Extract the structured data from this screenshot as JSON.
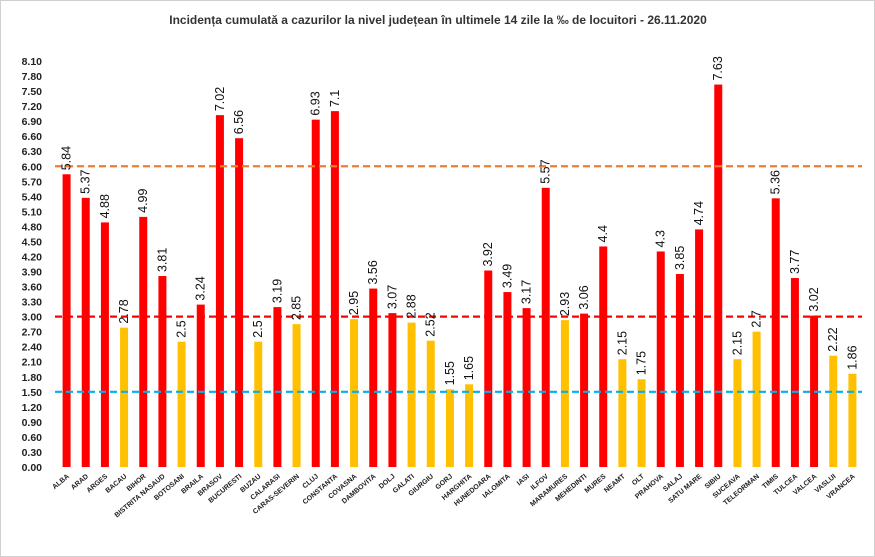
{
  "chart_data": {
    "type": "bar",
    "title": "Incidența cumulată a cazurilor la nivel județean în ultimele 14 zile la ‰ de locuitori - 26.11.2020",
    "xlabel": "",
    "ylabel": "",
    "ylim": [
      0,
      8.1
    ],
    "yticks": [
      "0.00",
      "0.30",
      "0.60",
      "0.90",
      "1.20",
      "1.50",
      "1.80",
      "2.10",
      "2.40",
      "2.70",
      "3.00",
      "3.30",
      "3.60",
      "3.90",
      "4.20",
      "4.50",
      "4.80",
      "5.10",
      "5.40",
      "5.70",
      "6.00",
      "6.30",
      "6.60",
      "6.90",
      "7.20",
      "7.50",
      "7.80",
      "8.10"
    ],
    "grid": false,
    "legend": "none",
    "categories": [
      "ALBA",
      "ARAD",
      "ARGES",
      "BACAU",
      "BIHOR",
      "BISTRITA NASAUD",
      "BOTOSANI",
      "BRAILA",
      "BRASOV",
      "BUCURESTI",
      "BUZAU",
      "CALARASI",
      "CARAS-SEVERIN",
      "CLUJ",
      "CONSTANTA",
      "COVASNA",
      "DAMBOVITA",
      "DOLJ",
      "GALATI",
      "GIURGIU",
      "GORJ",
      "HARGHITA",
      "HUNEDOARA",
      "IALOMITA",
      "IASI",
      "ILFOV",
      "MARAMURES",
      "MEHEDINTI",
      "MURES",
      "NEAMT",
      "OLT",
      "PRAHOVA",
      "SALAJ",
      "SATU MARE",
      "SIBIU",
      "SUCEAVA",
      "TELEORMAN",
      "TIMIS",
      "TULCEA",
      "VALCEA",
      "VASLUI",
      "VRANCEA"
    ],
    "values": [
      5.84,
      5.37,
      4.88,
      2.78,
      4.99,
      3.81,
      2.5,
      3.24,
      7.02,
      6.56,
      2.5,
      3.19,
      2.85,
      6.93,
      7.1,
      2.95,
      3.56,
      3.07,
      2.88,
      2.52,
      1.55,
      1.65,
      3.92,
      3.49,
      3.17,
      5.57,
      2.93,
      3.06,
      4.4,
      2.15,
      1.75,
      4.3,
      3.85,
      4.74,
      7.63,
      2.15,
      2.7,
      5.36,
      3.77,
      3.02,
      2.22,
      1.86
    ],
    "value_labels": [
      "5.84",
      "5.37",
      "4.88",
      "2.78",
      "4.99",
      "3.81",
      "2.5",
      "3.24",
      "7.02",
      "6.56",
      "2.5",
      "3.19",
      "2.85",
      "6.93",
      "7.1",
      "2.95",
      "3.56",
      "3.07",
      "2.88",
      "2.52",
      "1.55",
      "1.65",
      "3.92",
      "3.49",
      "3.17",
      "5.57",
      "2.93",
      "3.06",
      "4.4",
      "2.15",
      "1.75",
      "4.3",
      "3.85",
      "4.74",
      "7.63",
      "2.15",
      "2.7",
      "5.36",
      "3.77",
      "3.02",
      "2.22",
      "1.86"
    ],
    "bar_colors": [
      "#ff0000",
      "#ff0000",
      "#ff0000",
      "#ffc000",
      "#ff0000",
      "#ff0000",
      "#ffc000",
      "#ff0000",
      "#ff0000",
      "#ff0000",
      "#ffc000",
      "#ff0000",
      "#ffc000",
      "#ff0000",
      "#ff0000",
      "#ffc000",
      "#ff0000",
      "#ff0000",
      "#ffc000",
      "#ffc000",
      "#ffc000",
      "#ffc000",
      "#ff0000",
      "#ff0000",
      "#ff0000",
      "#ff0000",
      "#ffc000",
      "#ff0000",
      "#ff0000",
      "#ffc000",
      "#ffc000",
      "#ff0000",
      "#ff0000",
      "#ff0000",
      "#ff0000",
      "#ffc000",
      "#ffc000",
      "#ff0000",
      "#ff0000",
      "#ff0000",
      "#ffc000",
      "#ffc000"
    ],
    "reference_lines": [
      {
        "value": 6.0,
        "color": "#ed7d31",
        "style": "dashed"
      },
      {
        "value": 3.0,
        "color": "#ff0000",
        "style": "dashed"
      },
      {
        "value": 1.5,
        "color": "#00b0f0",
        "style": "dashed"
      }
    ]
  }
}
